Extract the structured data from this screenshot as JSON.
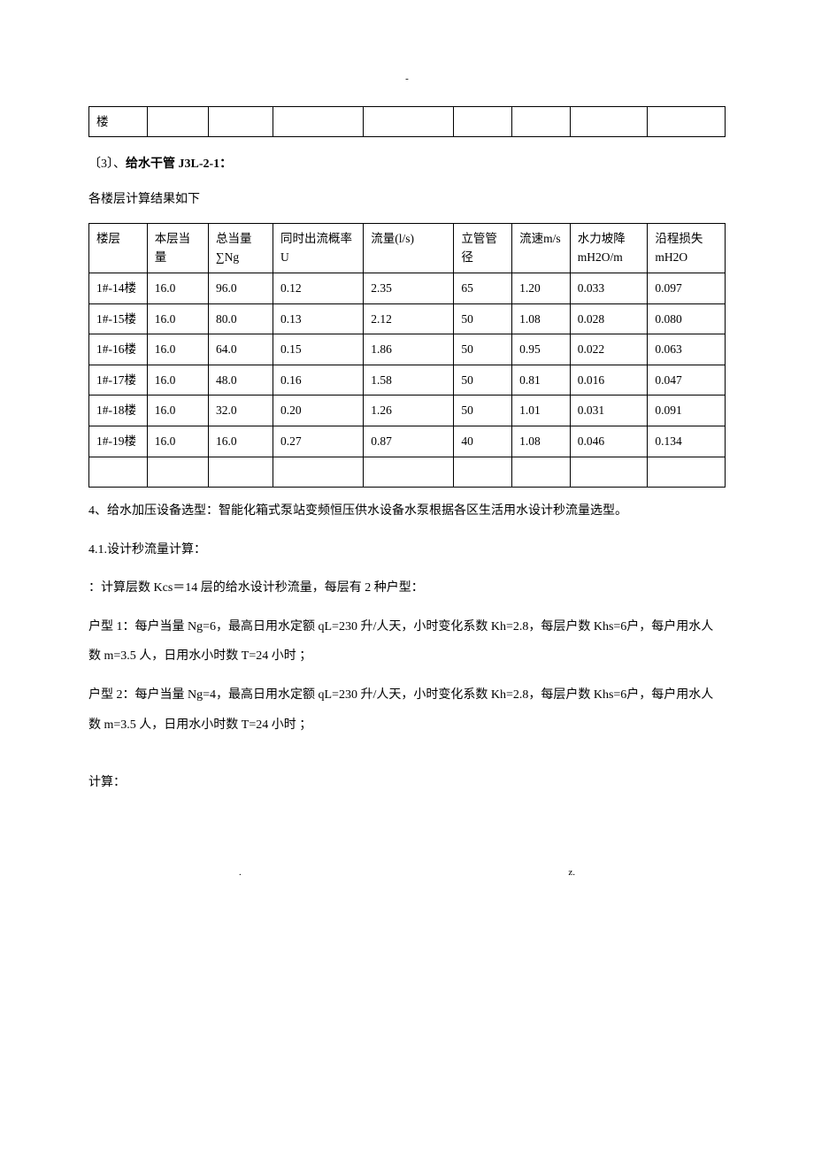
{
  "page_marker_top": "-",
  "fragment_table": {
    "cell": "楼"
  },
  "section3": {
    "prefix": "〔3〕、",
    "bold_part": "给水干管 J3L-2-1：",
    "subtitle": "各楼层计算结果如下"
  },
  "main_table": {
    "headers": {
      "floor": "楼层",
      "curr_equiv": "本层当量",
      "total_equiv": "总当量∑Ng",
      "prob": "同时出流概率U",
      "flow": "流量(l/s)",
      "diam": "立管管径",
      "velocity": "流速m/s",
      "gradient": "水力坡降mH2O/m",
      "loss": "沿程损失mH2O"
    },
    "rows": [
      {
        "floor": "1#-14楼",
        "curr": "16.0",
        "total": "96.0",
        "prob": "0.12",
        "flow": "2.35",
        "diam": "65",
        "vel": "1.20",
        "grad": "0.033",
        "loss": "0.097"
      },
      {
        "floor": "1#-15楼",
        "curr": "16.0",
        "total": "80.0",
        "prob": "0.13",
        "flow": "2.12",
        "diam": "50",
        "vel": "1.08",
        "grad": "0.028",
        "loss": "0.080"
      },
      {
        "floor": "1#-16楼",
        "curr": "16.0",
        "total": "64.0",
        "prob": "0.15",
        "flow": "1.86",
        "diam": "50",
        "vel": "0.95",
        "grad": "0.022",
        "loss": "0.063"
      },
      {
        "floor": "1#-17楼",
        "curr": "16.0",
        "total": "48.0",
        "prob": "0.16",
        "flow": "1.58",
        "diam": "50",
        "vel": "0.81",
        "grad": "0.016",
        "loss": "0.047"
      },
      {
        "floor": "1#-18楼",
        "curr": "16.0",
        "total": "32.0",
        "prob": "0.20",
        "flow": "1.26",
        "diam": "50",
        "vel": "1.01",
        "grad": "0.031",
        "loss": "0.091"
      },
      {
        "floor": "1#-19楼",
        "curr": "16.0",
        "total": "16.0",
        "prob": "0.27",
        "flow": "0.87",
        "diam": "40",
        "vel": "1.08",
        "grad": "0.046",
        "loss": "0.134"
      }
    ]
  },
  "section4": {
    "intro": "4、给水加压设备选型：智能化箱式泵站变频恒压供水设备水泵根据各区生活用水设计秒流量选型。",
    "sub41": "4.1.设计秒流量计算：",
    "line1": "：计算层数 Kcs＝14 层的给水设计秒流量，每层有 2 种户型：",
    "line2": "户型 1：每户当量 Ng=6，最高日用水定额 qL=230 升/人天，小时变化系数 Kh=2.8，每层户数 Khs=6户，每户用水人数 m=3.5 人，日用水小时数 T=24 小时 ；",
    "line3": "户型 2：每户当量 Ng=4，最高日用水定额 qL=230 升/人天，小时变化系数 Kh=2.8，每层户数 Khs=6户，每户用水人数 m=3.5 人，日用水小时数 T=24 小时 ；",
    "calc_label": "计算："
  },
  "footer": {
    "left": ".",
    "right": "z."
  }
}
